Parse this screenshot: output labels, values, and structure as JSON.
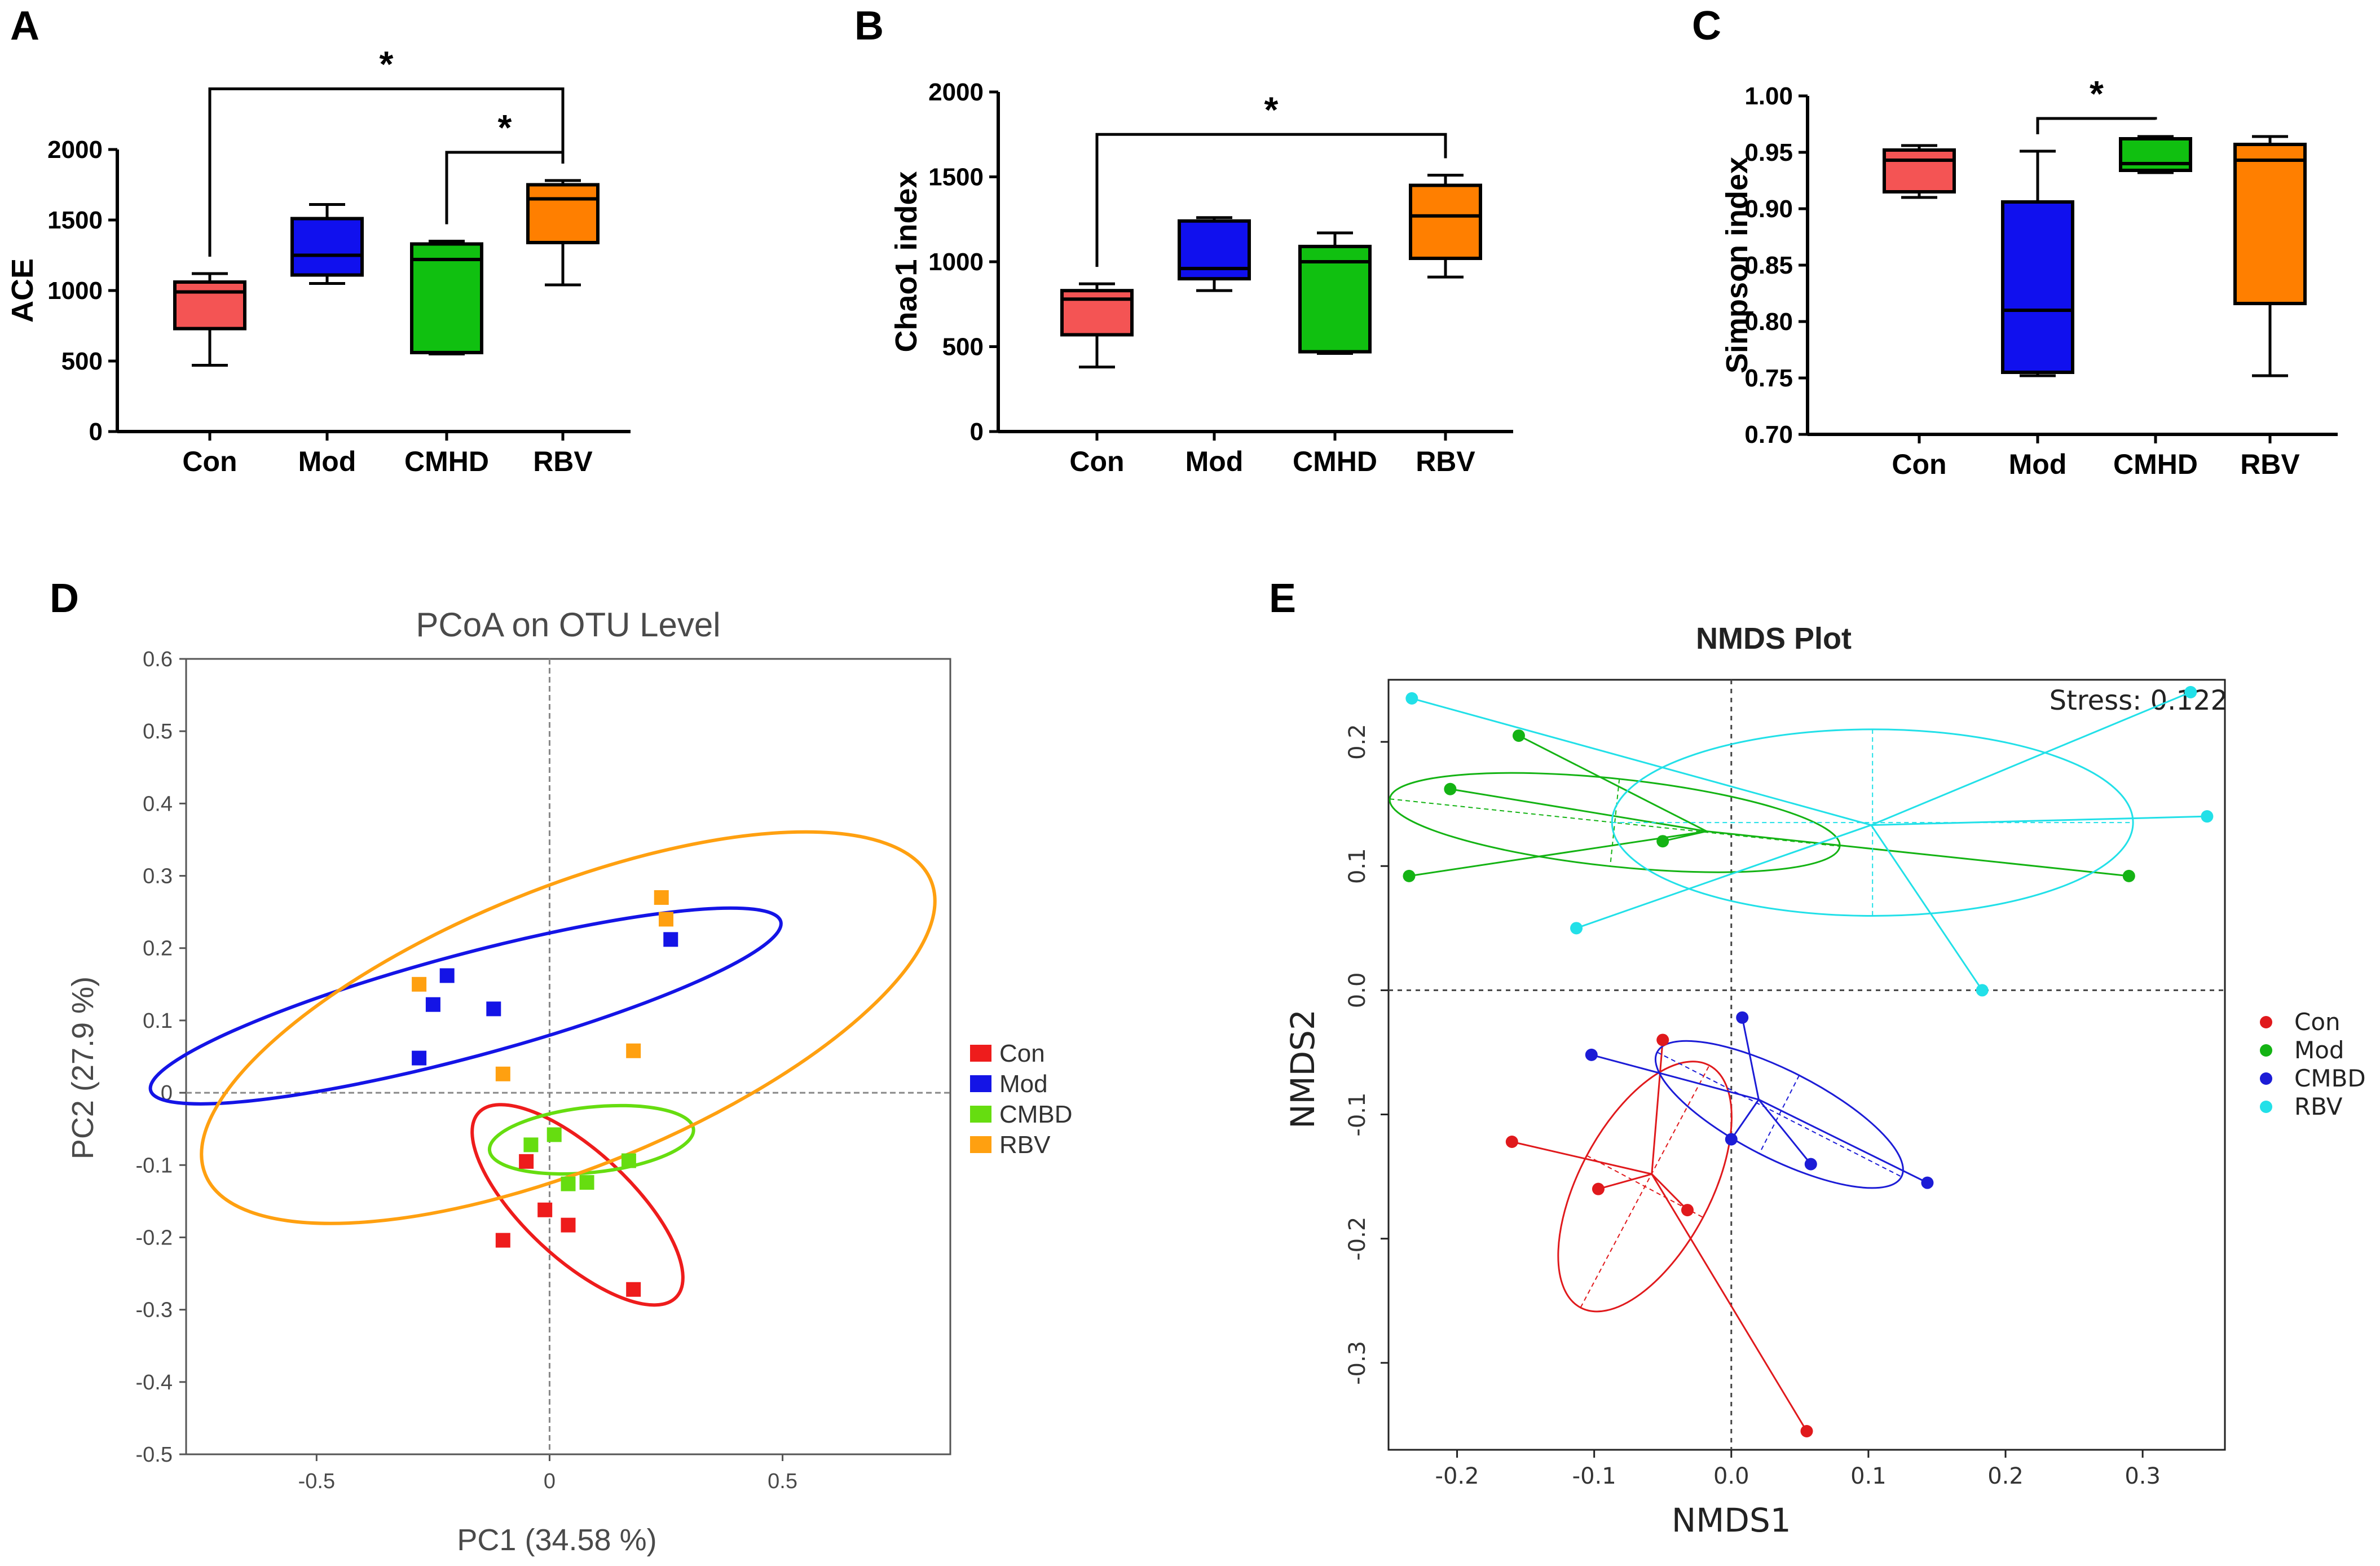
{
  "figure": {
    "panel_labels": [
      "A",
      "B",
      "C",
      "D",
      "E"
    ]
  },
  "chart_data": [
    {
      "panel": "A",
      "type": "box",
      "ylabel": "ACE",
      "categories": [
        "Con",
        "Mod",
        "CMHD",
        "RBV"
      ],
      "colors": [
        "#f45454",
        "#1010ee",
        "#10c010",
        "#ff7f00"
      ],
      "ylim": [
        0,
        2000
      ],
      "yticks": [
        0,
        500,
        1000,
        1500,
        2000
      ],
      "boxes": [
        {
          "min": 470,
          "q1": 730,
          "median": 990,
          "q3": 1060,
          "max": 1120
        },
        {
          "min": 1050,
          "q1": 1110,
          "median": 1250,
          "q3": 1510,
          "max": 1610
        },
        {
          "min": 550,
          "q1": 560,
          "median": 1220,
          "q3": 1330,
          "max": 1350
        },
        {
          "min": 1040,
          "q1": 1340,
          "median": 1650,
          "q3": 1750,
          "max": 1780
        }
      ],
      "significance": [
        {
          "from": 0,
          "to": 3,
          "label": "*",
          "y": 2430
        },
        {
          "from": 2,
          "to": 3,
          "label": "*",
          "y": 1980
        }
      ]
    },
    {
      "panel": "B",
      "type": "box",
      "ylabel": "Chao1 index",
      "categories": [
        "Con",
        "Mod",
        "CMHD",
        "RBV"
      ],
      "colors": [
        "#f45454",
        "#1010ee",
        "#10c010",
        "#ff7f00"
      ],
      "ylim": [
        0,
        2000
      ],
      "yticks": [
        0,
        500,
        1000,
        1500,
        2000
      ],
      "boxes": [
        {
          "min": 380,
          "q1": 570,
          "median": 780,
          "q3": 830,
          "max": 870
        },
        {
          "min": 830,
          "q1": 900,
          "median": 960,
          "q3": 1240,
          "max": 1260
        },
        {
          "min": 460,
          "q1": 470,
          "median": 1000,
          "q3": 1090,
          "max": 1170
        },
        {
          "min": 910,
          "q1": 1020,
          "median": 1270,
          "q3": 1450,
          "max": 1510
        }
      ],
      "significance": [
        {
          "from": 0,
          "to": 3,
          "label": "*",
          "y": 1750
        }
      ]
    },
    {
      "panel": "C",
      "type": "box",
      "ylabel": "Simpson index",
      "categories": [
        "Con",
        "Mod",
        "CMHD",
        "RBV"
      ],
      "colors": [
        "#f45454",
        "#1010ee",
        "#10c010",
        "#ff7f00"
      ],
      "ylim": [
        0.7,
        1.0
      ],
      "yticks": [
        "0.70",
        "0.75",
        "0.80",
        "0.85",
        "0.90",
        "0.95",
        "1.00"
      ],
      "boxes": [
        {
          "min": 0.91,
          "q1": 0.915,
          "median": 0.943,
          "q3": 0.952,
          "max": 0.956
        },
        {
          "min": 0.752,
          "q1": 0.755,
          "median": 0.81,
          "q3": 0.906,
          "max": 0.951
        },
        {
          "min": 0.932,
          "q1": 0.934,
          "median": 0.94,
          "q3": 0.962,
          "max": 0.964
        },
        {
          "min": 0.752,
          "q1": 0.816,
          "median": 0.943,
          "q3": 0.957,
          "max": 0.964
        }
      ],
      "significance": [
        {
          "from": 1,
          "to": 2,
          "label": "*",
          "y": 0.98
        }
      ]
    },
    {
      "panel": "D",
      "type": "scatter",
      "title": "PCoA on OTU Level",
      "xlabel": "PC1 (34.58 %)",
      "ylabel": "PC2  (27.9 %)",
      "xlim": [
        -0.78,
        0.86
      ],
      "ylim": [
        -0.5,
        0.6
      ],
      "xticks": [
        "-0.5",
        "0",
        "0.5"
      ],
      "yticks": [
        "-0.5",
        "-0.4",
        "-0.3",
        "-0.2",
        "-0.1",
        "0",
        "0.1",
        "0.2",
        "0.3",
        "0.4",
        "0.5",
        "0.6"
      ],
      "legend": "right",
      "series": [
        {
          "name": "Con",
          "color": "#ee1c1c",
          "points": [
            [
              -0.05,
              -0.095
            ],
            [
              -0.01,
              -0.162
            ],
            [
              -0.1,
              -0.204
            ],
            [
              0.04,
              -0.183
            ],
            [
              0.18,
              -0.272
            ]
          ],
          "ellipse": {
            "cx": 0.06,
            "cy": -0.155,
            "rx": 0.29,
            "ry": 0.115,
            "angle_deg": 43
          }
        },
        {
          "name": "Mod",
          "color": "#1414e6",
          "points": [
            [
              -0.22,
              0.162
            ],
            [
              -0.25,
              0.122
            ],
            [
              -0.12,
              0.116
            ],
            [
              -0.28,
              0.048
            ],
            [
              0.26,
              0.212
            ]
          ],
          "ellipse": {
            "cx": -0.18,
            "cy": 0.12,
            "rx": 0.7,
            "ry": 0.11,
            "angle_deg": -15
          }
        },
        {
          "name": "CMBD",
          "color": "#66dd10",
          "points": [
            [
              0.01,
              -0.058
            ],
            [
              -0.04,
              -0.072
            ],
            [
              0.04,
              -0.126
            ],
            [
              0.08,
              -0.124
            ],
            [
              0.17,
              -0.094
            ]
          ],
          "ellipse": {
            "cx": 0.09,
            "cy": -0.065,
            "rx": 0.22,
            "ry": 0.07,
            "angle_deg": -6
          }
        },
        {
          "name": "RBV",
          "color": "#ffa010",
          "points": [
            [
              0.24,
              0.27
            ],
            [
              0.25,
              0.24
            ],
            [
              -0.28,
              0.15
            ],
            [
              -0.1,
              0.026
            ],
            [
              0.18,
              0.058
            ]
          ],
          "ellipse": {
            "cx": 0.04,
            "cy": 0.09,
            "rx": 0.84,
            "ry": 0.3,
            "angle_deg": -22
          }
        }
      ]
    },
    {
      "panel": "E",
      "type": "scatter",
      "title": "NMDS Plot",
      "xlabel": "NMDS1",
      "ylabel": "NMDS2",
      "annotation": "Stress:  0.122",
      "xlim": [
        -0.25,
        0.36
      ],
      "ylim": [
        -0.37,
        0.25
      ],
      "xticks": [
        "-0.2",
        "-0.1",
        "0.0",
        "0.1",
        "0.2",
        "0.3"
      ],
      "yticks": [
        "-0.3",
        "-0.2",
        "-0.1",
        "0.0",
        "0.1",
        "0.2"
      ],
      "legend": "right",
      "series": [
        {
          "name": "Con",
          "color": "#e0191c",
          "centroid": [
            -0.058,
            -0.148
          ],
          "points": [
            [
              -0.16,
              -0.122
            ],
            [
              -0.097,
              -0.16
            ],
            [
              -0.032,
              -0.177
            ],
            [
              -0.05,
              -0.04
            ],
            [
              0.055,
              -0.355
            ]
          ],
          "ellipse": {
            "cx": -0.063,
            "cy": -0.158,
            "rx": 0.1,
            "ry": 0.048,
            "angle_deg": 62
          }
        },
        {
          "name": "Mod",
          "color": "#14b314",
          "centroid": [
            -0.018,
            0.128
          ],
          "points": [
            [
              -0.235,
              0.092
            ],
            [
              -0.205,
              0.162
            ],
            [
              -0.155,
              0.205
            ],
            [
              -0.05,
              0.12
            ],
            [
              0.29,
              0.092
            ]
          ],
          "ellipse": {
            "cx": -0.085,
            "cy": 0.135,
            "rx": 0.165,
            "ry": 0.032,
            "angle_deg": -6
          }
        },
        {
          "name": "CMBD",
          "color": "#1c1cd6",
          "centroid": [
            0.02,
            -0.088
          ],
          "points": [
            [
              -0.102,
              -0.052
            ],
            [
              0.008,
              -0.022
            ],
            [
              0.0,
              -0.12
            ],
            [
              0.058,
              -0.14
            ],
            [
              0.143,
              -0.155
            ]
          ],
          "ellipse": {
            "cx": 0.035,
            "cy": -0.1,
            "rx": 0.1,
            "ry": 0.032,
            "angle_deg": -27
          }
        },
        {
          "name": "RBV",
          "color": "#22e0e8",
          "centroid": [
            0.102,
            0.133
          ],
          "points": [
            [
              -0.233,
              0.235
            ],
            [
              -0.113,
              0.05
            ],
            [
              0.183,
              0.0
            ],
            [
              0.335,
              0.24
            ],
            [
              0.347,
              0.14
            ]
          ],
          "ellipse": {
            "cx": 0.103,
            "cy": 0.135,
            "rx": 0.19,
            "ry": 0.068,
            "angle_deg": 0
          }
        }
      ]
    }
  ]
}
